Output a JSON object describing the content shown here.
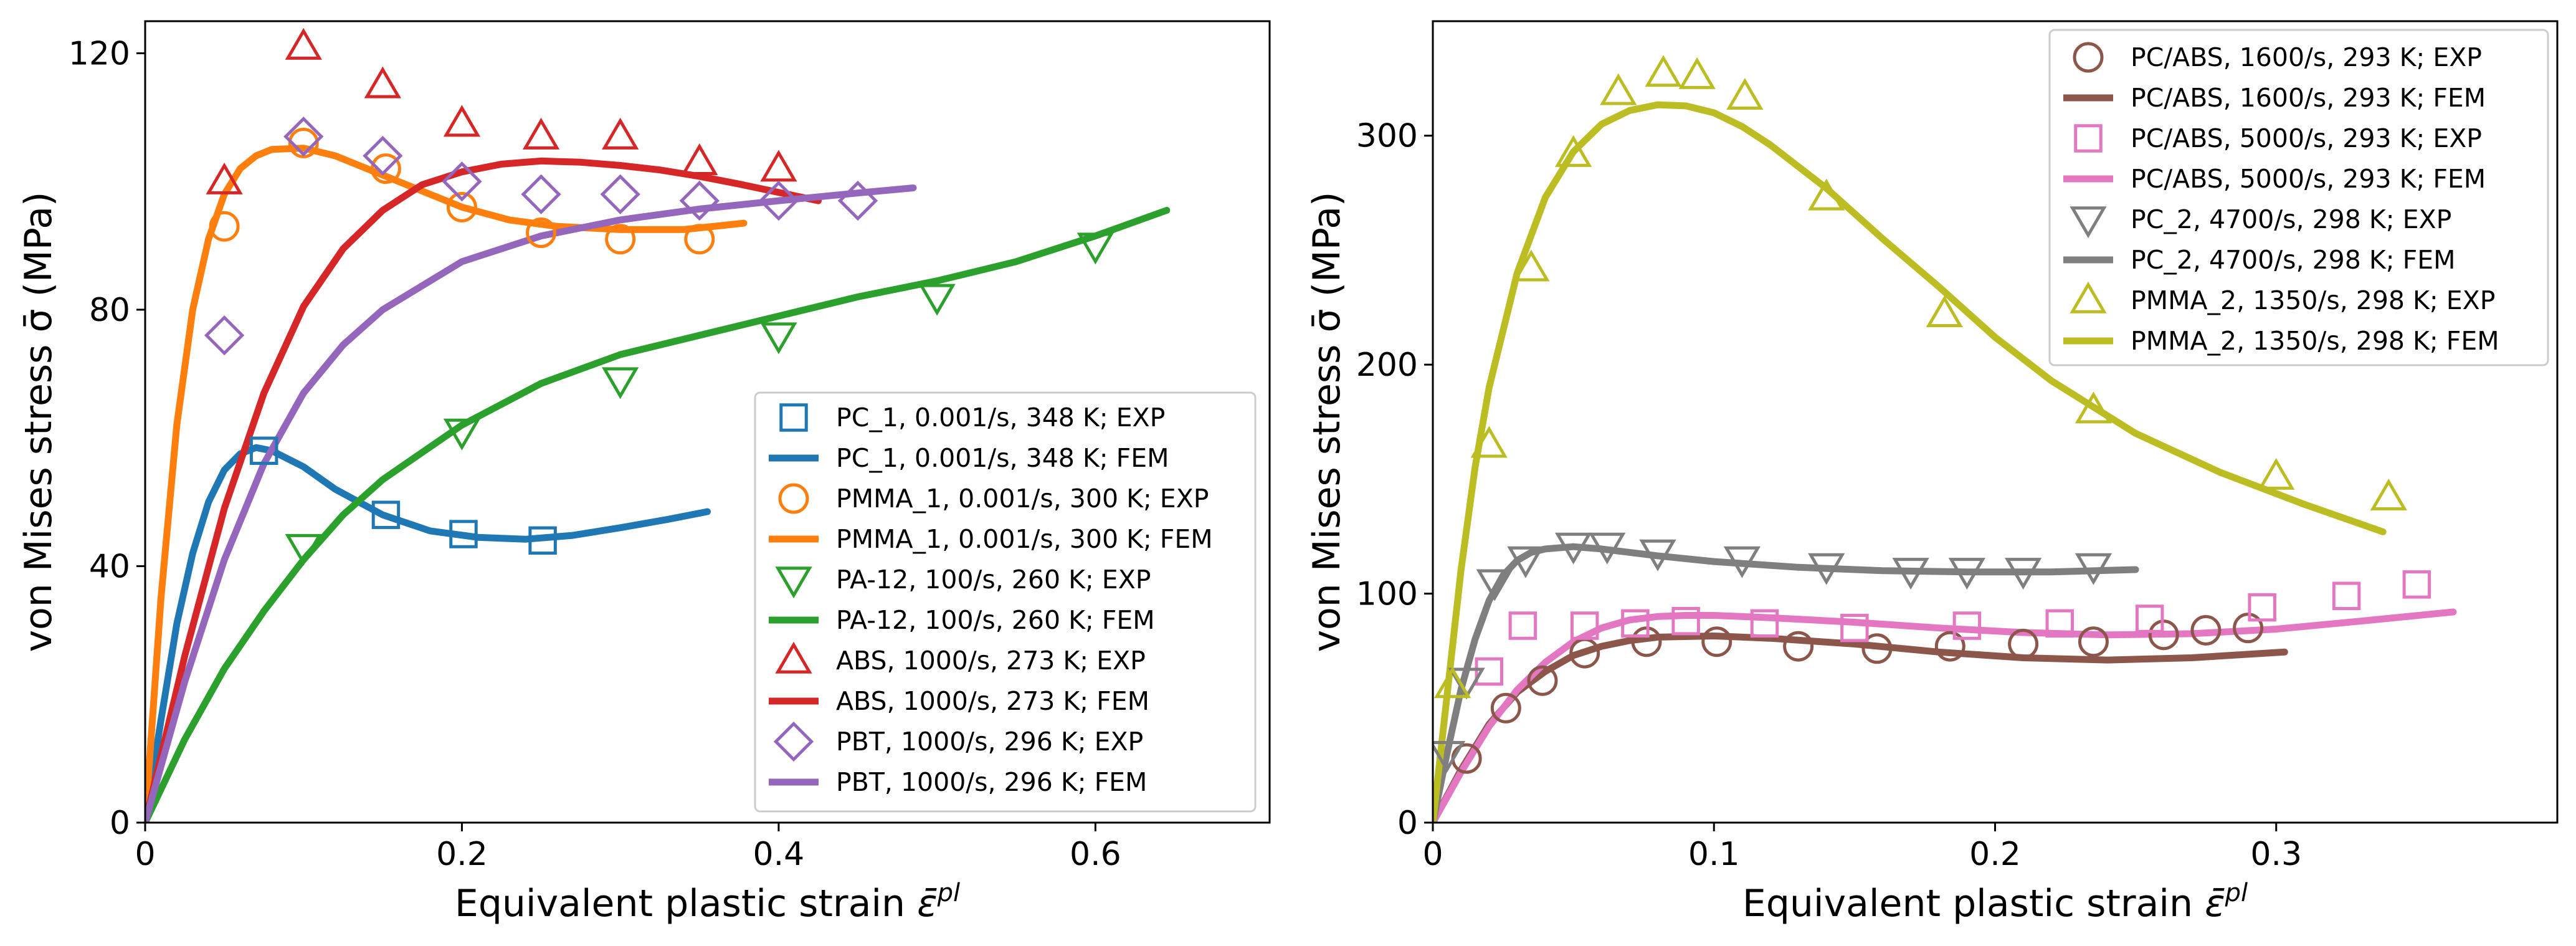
{
  "chart_data": [
    {
      "type": "line",
      "xlabel": "Equivalent plastic strain",
      "xlabel_symbol": "ε̄",
      "xlabel_sup": "pl",
      "ylabel": "von Mises stress σ̄ (MPa)",
      "xlim": [
        0,
        0.71
      ],
      "ylim": [
        0,
        125
      ],
      "xticks": [
        0,
        0.2,
        0.4,
        0.6
      ],
      "xtick_labels": [
        "0",
        "0.2",
        "0.4",
        "0.6"
      ],
      "yticks": [
        0,
        40,
        80,
        120
      ],
      "ytick_labels": [
        "0",
        "40",
        "80",
        "120"
      ],
      "grid": false,
      "legend_position": "lower-right",
      "series": [
        {
          "name": "PC_1, 0.001/s, 348 K; EXP",
          "kind": "exp",
          "marker": "square",
          "color": "#1f77b4",
          "x": [
            0.075,
            0.152,
            0.201,
            0.251
          ],
          "y": [
            58,
            48,
            45,
            44
          ]
        },
        {
          "name": "PC_1, 0.001/s, 348 K; FEM",
          "kind": "fem",
          "color": "#1f77b4",
          "x": [
            0,
            0.01,
            0.02,
            0.03,
            0.04,
            0.05,
            0.06,
            0.07,
            0.08,
            0.1,
            0.12,
            0.15,
            0.18,
            0.21,
            0.24,
            0.27,
            0.3,
            0.33,
            0.355
          ],
          "y": [
            0,
            16,
            31,
            42,
            50,
            55,
            57.5,
            58.5,
            58,
            55.5,
            52,
            48,
            45.5,
            44.5,
            44.2,
            44.8,
            46,
            47.3,
            48.5
          ]
        },
        {
          "name": "PMMA_1, 0.001/s, 300 K; EXP",
          "kind": "exp",
          "marker": "circle",
          "color": "#ff7f0e",
          "x": [
            0.05,
            0.1,
            0.152,
            0.2,
            0.25,
            0.3,
            0.35
          ],
          "y": [
            93,
            106,
            102,
            96,
            92,
            91,
            91
          ]
        },
        {
          "name": "PMMA_1, 0.001/s, 300 K; FEM",
          "kind": "fem",
          "color": "#ff7f0e",
          "x": [
            0,
            0.01,
            0.02,
            0.03,
            0.04,
            0.05,
            0.06,
            0.07,
            0.08,
            0.1,
            0.12,
            0.15,
            0.18,
            0.2,
            0.23,
            0.26,
            0.3,
            0.34,
            0.378
          ],
          "y": [
            0,
            35,
            62,
            80,
            91,
            98,
            102,
            104,
            105,
            105.2,
            104,
            101,
            98,
            96,
            94,
            93,
            92.5,
            92.5,
            93.5
          ]
        },
        {
          "name": "PA-12, 100/s, 260 K; EXP",
          "kind": "exp",
          "marker": "triangle-down",
          "color": "#2ca02c",
          "x": [
            0.1,
            0.2,
            0.3,
            0.4,
            0.5,
            0.6
          ],
          "y": [
            43,
            61,
            69,
            76,
            82,
            90
          ]
        },
        {
          "name": "PA-12, 100/s, 260 K; FEM",
          "kind": "fem",
          "color": "#2ca02c",
          "x": [
            0,
            0.025,
            0.05,
            0.075,
            0.1,
            0.125,
            0.15,
            0.2,
            0.25,
            0.3,
            0.35,
            0.4,
            0.45,
            0.5,
            0.55,
            0.6,
            0.645
          ],
          "y": [
            0,
            13,
            24,
            33,
            41,
            48,
            53.5,
            62,
            68.5,
            73,
            76,
            79,
            82,
            84.5,
            87.5,
            91.5,
            95.5
          ]
        },
        {
          "name": "ABS, 1000/s, 273 K; EXP",
          "kind": "exp",
          "marker": "triangle-up",
          "color": "#d62728",
          "x": [
            0.05,
            0.1,
            0.15,
            0.2,
            0.25,
            0.3,
            0.35,
            0.4
          ],
          "y": [
            100,
            121,
            115,
            109,
            107,
            107,
            103,
            102
          ]
        },
        {
          "name": "ABS, 1000/s, 273 K; FEM",
          "kind": "fem",
          "color": "#d62728",
          "x": [
            0,
            0.025,
            0.05,
            0.075,
            0.1,
            0.125,
            0.15,
            0.175,
            0.2,
            0.225,
            0.25,
            0.275,
            0.3,
            0.325,
            0.35,
            0.375,
            0.4,
            0.425
          ],
          "y": [
            0,
            26,
            49,
            67,
            80.5,
            89.5,
            95.5,
            99.5,
            101.5,
            102.7,
            103.2,
            103,
            102.5,
            101.8,
            100.8,
            99.6,
            98.3,
            97
          ]
        },
        {
          "name": "PBT, 1000/s, 296 K; EXP",
          "kind": "exp",
          "marker": "diamond",
          "color": "#9467bd",
          "x": [
            0.05,
            0.1,
            0.15,
            0.2,
            0.25,
            0.3,
            0.35,
            0.4,
            0.45
          ],
          "y": [
            76,
            107,
            104,
            100,
            98,
            98,
            97,
            97,
            97
          ]
        },
        {
          "name": "PBT, 1000/s, 296 K; FEM",
          "kind": "fem",
          "color": "#9467bd",
          "x": [
            0,
            0.025,
            0.05,
            0.075,
            0.1,
            0.125,
            0.15,
            0.2,
            0.25,
            0.3,
            0.35,
            0.4,
            0.45,
            0.485
          ],
          "y": [
            0,
            22,
            41,
            56,
            67,
            74.5,
            80,
            87.5,
            91.5,
            94,
            95.7,
            97,
            98.2,
            99
          ]
        }
      ]
    },
    {
      "type": "line",
      "xlabel": "Equivalent plastic strain",
      "xlabel_symbol": "ε̄",
      "xlabel_sup": "pl",
      "ylabel": "von Mises stress σ̄ (MPa)",
      "xlim": [
        0,
        0.4
      ],
      "ylim": [
        0,
        350
      ],
      "xticks": [
        0,
        0.1,
        0.2,
        0.3
      ],
      "xtick_labels": [
        "0",
        "0.1",
        "0.2",
        "0.3"
      ],
      "yticks": [
        0,
        100,
        200,
        300
      ],
      "ytick_labels": [
        "0",
        "100",
        "200",
        "300"
      ],
      "grid": false,
      "legend_position": "upper-right",
      "series": [
        {
          "name": "PC/ABS, 1600/s, 293 K; EXP",
          "kind": "exp",
          "marker": "circle",
          "color": "#8c564b",
          "x": [
            0.012,
            0.026,
            0.039,
            0.054,
            0.076,
            0.101,
            0.13,
            0.158,
            0.184,
            0.21,
            0.235,
            0.26,
            0.275,
            0.29
          ],
          "y": [
            28,
            50,
            62,
            74,
            79,
            79,
            77,
            76,
            77,
            78,
            79,
            82,
            84,
            85
          ]
        },
        {
          "name": "PC/ABS, 1600/s, 293 K; FEM",
          "kind": "fem",
          "color": "#8c564b",
          "x": [
            0,
            0.01,
            0.02,
            0.03,
            0.04,
            0.05,
            0.06,
            0.07,
            0.08,
            0.1,
            0.12,
            0.15,
            0.18,
            0.21,
            0.24,
            0.27,
            0.303
          ],
          "y": [
            0,
            23,
            43,
            57,
            66,
            73,
            77,
            79.5,
            81,
            81.5,
            80.5,
            78,
            74.5,
            72,
            71,
            72,
            74.5
          ]
        },
        {
          "name": "PC/ABS, 5000/s, 293 K; EXP",
          "kind": "exp",
          "marker": "square",
          "color": "#e377c2",
          "x": [
            0.02,
            0.032,
            0.054,
            0.072,
            0.09,
            0.118,
            0.15,
            0.19,
            0.223,
            0.255,
            0.295,
            0.325,
            0.35
          ],
          "y": [
            66,
            86,
            86,
            87,
            88,
            87,
            85,
            86,
            87,
            89,
            94,
            99,
            104
          ]
        },
        {
          "name": "PC/ABS, 5000/s, 293 K; FEM",
          "kind": "fem",
          "color": "#e377c2",
          "x": [
            0,
            0.01,
            0.02,
            0.03,
            0.04,
            0.05,
            0.06,
            0.07,
            0.08,
            0.09,
            0.1,
            0.12,
            0.15,
            0.18,
            0.21,
            0.24,
            0.27,
            0.3,
            0.33,
            0.363
          ],
          "y": [
            0,
            22,
            42,
            58,
            70,
            79,
            85,
            88.5,
            90,
            90.5,
            90.5,
            89.5,
            87.5,
            85,
            83,
            82,
            82.5,
            84.5,
            88,
            92
          ]
        },
        {
          "name": "PC_2, 4700/s, 298 K; EXP",
          "kind": "exp",
          "marker": "triangle-down",
          "color": "#7f7f7f",
          "x": [
            0.005,
            0.012,
            0.022,
            0.033,
            0.05,
            0.062,
            0.08,
            0.11,
            0.14,
            0.17,
            0.19,
            0.21,
            0.235
          ],
          "y": [
            30,
            62,
            105,
            115,
            121,
            121,
            118,
            115,
            112,
            110,
            110,
            110,
            112
          ]
        },
        {
          "name": "PC_2, 4700/s, 298 K; FEM",
          "kind": "fem",
          "color": "#7f7f7f",
          "x": [
            0,
            0.005,
            0.01,
            0.015,
            0.02,
            0.025,
            0.03,
            0.035,
            0.04,
            0.05,
            0.06,
            0.08,
            0.1,
            0.13,
            0.16,
            0.19,
            0.22,
            0.25
          ],
          "y": [
            0,
            30,
            58,
            80,
            97,
            108,
            114.5,
            118,
            119.5,
            120.5,
            119.5,
            116.5,
            114,
            111.5,
            110,
            109.5,
            109.5,
            110.5
          ]
        },
        {
          "name": "PMMA_2, 1350/s, 298 K; EXP",
          "kind": "exp",
          "marker": "triangle-up",
          "color": "#bcbd22",
          "x": [
            0.007,
            0.02,
            0.035,
            0.05,
            0.066,
            0.082,
            0.094,
            0.111,
            0.14,
            0.182,
            0.235,
            0.3,
            0.34
          ],
          "y": [
            60,
            165,
            242,
            292,
            319,
            327,
            326,
            317,
            273,
            222,
            180,
            151,
            142
          ]
        },
        {
          "name": "PMMA_2, 1350/s, 298 K; FEM",
          "kind": "fem",
          "color": "#bcbd22",
          "x": [
            0,
            0.005,
            0.01,
            0.015,
            0.02,
            0.03,
            0.04,
            0.05,
            0.06,
            0.07,
            0.08,
            0.09,
            0.1,
            0.11,
            0.12,
            0.14,
            0.16,
            0.18,
            0.2,
            0.22,
            0.25,
            0.28,
            0.31,
            0.338
          ],
          "y": [
            0,
            55,
            110,
            155,
            190,
            240,
            273,
            293,
            305,
            311,
            313.5,
            313,
            310,
            304,
            296,
            277,
            255,
            234,
            212,
            193,
            170,
            153,
            139,
            127
          ]
        }
      ]
    }
  ]
}
